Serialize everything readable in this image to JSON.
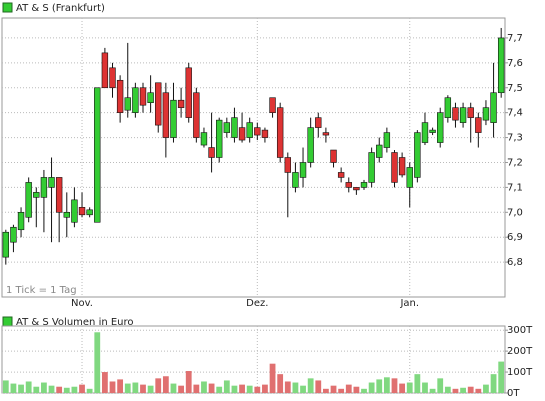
{
  "chart_data": [
    {
      "type": "candlestick",
      "title": "AT & S (Frankfurt)",
      "note": "1 Tick = 1 Tag",
      "categories": [
        null,
        null,
        null,
        null,
        null,
        null,
        null,
        null,
        null,
        null,
        "Nov.",
        null,
        null,
        null,
        null,
        null,
        null,
        null,
        null,
        null,
        null,
        null,
        null,
        null,
        null,
        null,
        null,
        null,
        null,
        null,
        null,
        null,
        null,
        "Dez.",
        null,
        null,
        null,
        null,
        null,
        null,
        null,
        null,
        null,
        null,
        null,
        null,
        null,
        null,
        null,
        null,
        null,
        null,
        null,
        "Jan.",
        null,
        null,
        null,
        null,
        null,
        null,
        null,
        null,
        null,
        null,
        null,
        null
      ],
      "open": [
        6.82,
        6.88,
        6.93,
        6.98,
        7.06,
        7.06,
        7.1,
        7.14,
        6.98,
        6.96,
        7.02,
        6.99,
        6.96,
        7.64,
        7.58,
        7.53,
        7.41,
        7.4,
        7.5,
        7.44,
        7.52,
        7.48,
        7.3,
        7.45,
        7.58,
        7.48,
        7.27,
        7.26,
        7.22,
        7.32,
        7.3,
        7.34,
        7.3,
        7.34,
        7.33,
        7.46,
        7.42,
        7.22,
        7.1,
        7.14,
        7.2,
        7.38,
        7.32,
        7.25,
        7.16,
        7.12,
        7.1,
        7.1,
        7.12,
        7.22,
        7.26,
        7.24,
        7.22,
        7.1,
        7.14,
        7.28,
        7.32,
        7.28,
        7.38,
        7.42,
        7.36,
        7.42,
        7.38,
        7.37,
        7.36,
        7.48
      ],
      "high": [
        6.93,
        6.95,
        7.02,
        7.14,
        7.1,
        7.17,
        7.22,
        7.14,
        7.08,
        7.1,
        7.08,
        7.02,
        7.5,
        7.66,
        7.6,
        7.55,
        7.68,
        7.52,
        7.52,
        7.55,
        7.52,
        7.52,
        7.52,
        7.5,
        7.6,
        7.5,
        7.34,
        7.4,
        7.38,
        7.38,
        7.42,
        7.4,
        7.38,
        7.36,
        7.34,
        7.46,
        7.44,
        7.24,
        7.2,
        7.26,
        7.38,
        7.4,
        7.34,
        7.25,
        7.18,
        7.14,
        7.1,
        7.13,
        7.26,
        7.3,
        7.34,
        7.25,
        7.24,
        7.2,
        7.33,
        7.4,
        7.34,
        7.42,
        7.47,
        7.44,
        7.44,
        7.44,
        7.4,
        7.45,
        7.6,
        7.74
      ],
      "low": [
        6.79,
        6.84,
        6.9,
        6.96,
        6.94,
        6.92,
        6.88,
        6.88,
        6.9,
        6.94,
        6.98,
        6.98,
        6.96,
        7.5,
        7.46,
        7.36,
        7.38,
        7.38,
        7.4,
        7.4,
        7.32,
        7.22,
        7.28,
        7.38,
        7.36,
        7.28,
        7.26,
        7.16,
        7.2,
        7.3,
        7.28,
        7.28,
        7.28,
        7.29,
        7.28,
        7.38,
        7.2,
        6.98,
        7.08,
        7.1,
        7.18,
        7.3,
        7.28,
        7.18,
        7.12,
        7.08,
        7.07,
        7.09,
        7.1,
        7.2,
        7.24,
        7.1,
        7.14,
        7.02,
        7.12,
        7.27,
        7.31,
        7.26,
        7.36,
        7.34,
        7.34,
        7.28,
        7.26,
        7.35,
        7.3,
        7.46
      ],
      "close": [
        6.92,
        6.94,
        7.0,
        7.12,
        7.08,
        7.14,
        7.14,
        7.0,
        7.0,
        7.05,
        6.99,
        7.01,
        7.5,
        7.5,
        7.5,
        7.4,
        7.46,
        7.5,
        7.43,
        7.48,
        7.35,
        7.3,
        7.45,
        7.42,
        7.38,
        7.3,
        7.32,
        7.22,
        7.37,
        7.36,
        7.38,
        7.29,
        7.36,
        7.31,
        7.3,
        7.4,
        7.22,
        7.16,
        7.16,
        7.2,
        7.34,
        7.34,
        7.31,
        7.2,
        7.14,
        7.1,
        7.09,
        7.12,
        7.24,
        7.27,
        7.32,
        7.12,
        7.15,
        7.18,
        7.32,
        7.36,
        7.33,
        7.4,
        7.46,
        7.37,
        7.42,
        7.38,
        7.32,
        7.42,
        7.48,
        7.7
      ],
      "up_color": "#33cc33",
      "down_color": "#dd3333",
      "ylim": [
        6.66,
        7.78
      ],
      "yticks": [
        {
          "value": 6.8,
          "label": "6,8"
        },
        {
          "value": 6.9,
          "label": "6,9"
        },
        {
          "value": 7.0,
          "label": "7,0"
        },
        {
          "value": 7.1,
          "label": "7,1"
        },
        {
          "value": 7.2,
          "label": "7,2"
        },
        {
          "value": 7.3,
          "label": "7,3"
        },
        {
          "value": 7.4,
          "label": "7,4"
        },
        {
          "value": 7.5,
          "label": "7,5"
        },
        {
          "value": 7.6,
          "label": "7,6"
        },
        {
          "value": 7.7,
          "label": "7,7"
        }
      ],
      "grid": true
    },
    {
      "type": "bar",
      "title": "AT & S Volumen in Euro",
      "values": [
        60,
        45,
        40,
        55,
        30,
        50,
        35,
        30,
        25,
        30,
        40,
        20,
        290,
        100,
        55,
        65,
        45,
        50,
        40,
        35,
        70,
        80,
        45,
        35,
        105,
        40,
        55,
        45,
        30,
        60,
        35,
        40,
        35,
        30,
        40,
        140,
        90,
        55,
        50,
        35,
        70,
        60,
        20,
        35,
        20,
        40,
        30,
        20,
        50,
        65,
        75,
        70,
        45,
        50,
        90,
        50,
        20,
        70,
        30,
        20,
        25,
        30,
        20,
        40,
        90,
        150
      ],
      "up_color": "#80d880",
      "down_color": "#e07070",
      "ylim": [
        0,
        320
      ],
      "yticks": [
        {
          "value": 0,
          "label": "0T"
        },
        {
          "value": 100,
          "label": "100T"
        },
        {
          "value": 200,
          "label": "200T"
        },
        {
          "value": 300,
          "label": "300T"
        }
      ],
      "grid": true
    }
  ]
}
